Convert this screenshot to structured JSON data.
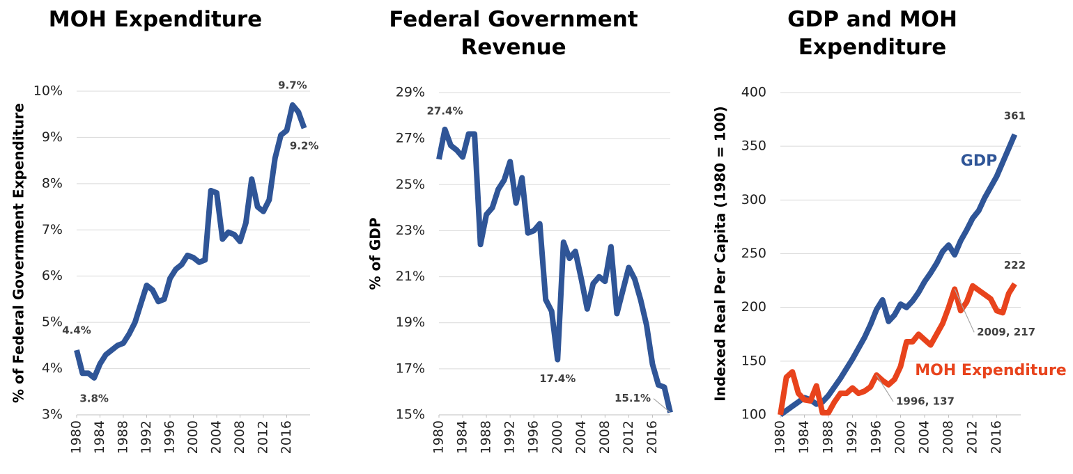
{
  "chart_data": [
    {
      "type": "line",
      "title": "MOH Expenditure",
      "y_label": "% of Federal Government Expenditure",
      "x": [
        1980,
        1981,
        1982,
        1983,
        1984,
        1985,
        1986,
        1987,
        1988,
        1989,
        1990,
        1991,
        1992,
        1993,
        1994,
        1995,
        1996,
        1997,
        1998,
        1999,
        2000,
        2001,
        2002,
        2003,
        2004,
        2005,
        2006,
        2007,
        2008,
        2009,
        2010,
        2011,
        2012,
        2013,
        2014,
        2015,
        2016,
        2017,
        2018,
        2019
      ],
      "xlim": [
        1980,
        2020
      ],
      "xticks": [
        1980,
        1984,
        1988,
        1992,
        1996,
        2000,
        2004,
        2008,
        2012,
        2016
      ],
      "ylim": [
        3,
        10
      ],
      "yticks": [
        {
          "value": 3,
          "label": "3%"
        },
        {
          "value": 4,
          "label": "4%"
        },
        {
          "value": 5,
          "label": "5%"
        },
        {
          "value": 6,
          "label": "6%"
        },
        {
          "value": 7,
          "label": "7%"
        },
        {
          "value": 8,
          "label": "8%"
        },
        {
          "value": 9,
          "label": "9%"
        },
        {
          "value": 10,
          "label": "10%"
        }
      ],
      "grid": true,
      "series": [
        {
          "color": "#2f5597",
          "values": [
            4.4,
            3.9,
            3.9,
            3.8,
            4.1,
            4.3,
            4.4,
            4.5,
            4.55,
            4.75,
            5.0,
            5.4,
            5.8,
            5.7,
            5.45,
            5.5,
            5.95,
            6.15,
            6.25,
            6.45,
            6.4,
            6.3,
            6.35,
            7.85,
            7.8,
            6.8,
            6.95,
            6.9,
            6.75,
            7.15,
            8.1,
            7.5,
            7.4,
            7.65,
            8.55,
            9.05,
            9.15,
            9.7,
            9.55,
            9.2
          ],
          "value_labels": [
            "4.4%",
            null,
            null,
            "3.8%",
            null,
            null,
            null,
            null,
            null,
            null,
            null,
            null,
            null,
            null,
            null,
            null,
            null,
            null,
            null,
            null,
            null,
            null,
            null,
            null,
            null,
            null,
            null,
            null,
            null,
            null,
            null,
            null,
            null,
            null,
            null,
            null,
            null,
            "9.7%",
            null,
            "9.2%"
          ]
        }
      ]
    },
    {
      "type": "line",
      "title": "Federal Government Revenue",
      "y_label": "% of GDP",
      "x": [
        1980,
        1981,
        1982,
        1983,
        1984,
        1985,
        1986,
        1987,
        1988,
        1989,
        1990,
        1991,
        1992,
        1993,
        1994,
        1995,
        1996,
        1997,
        1998,
        1999,
        2000,
        2001,
        2002,
        2003,
        2004,
        2005,
        2006,
        2007,
        2008,
        2009,
        2010,
        2011,
        2012,
        2013,
        2014,
        2015,
        2016,
        2017,
        2018,
        2019
      ],
      "xlim": [
        1980,
        2019
      ],
      "xticks": [
        1980,
        1984,
        1988,
        1992,
        1996,
        2000,
        2004,
        2008,
        2012,
        2016
      ],
      "ylim": [
        15,
        29
      ],
      "yticks": [
        {
          "value": 15,
          "label": "15%"
        },
        {
          "value": 17,
          "label": "17%"
        },
        {
          "value": 19,
          "label": "19%"
        },
        {
          "value": 21,
          "label": "21%"
        },
        {
          "value": 23,
          "label": "23%"
        },
        {
          "value": 25,
          "label": "25%"
        },
        {
          "value": 27,
          "label": "27%"
        },
        {
          "value": 29,
          "label": "29%"
        }
      ],
      "grid": true,
      "series": [
        {
          "color": "#2f5597",
          "values": [
            26.1,
            27.4,
            26.7,
            26.5,
            26.2,
            27.2,
            27.2,
            22.4,
            23.7,
            24.0,
            24.8,
            25.2,
            26.0,
            24.2,
            25.3,
            22.9,
            23.0,
            23.3,
            20.0,
            19.5,
            17.4,
            22.5,
            21.8,
            22.1,
            20.9,
            19.6,
            20.7,
            21.0,
            20.8,
            22.3,
            19.4,
            20.4,
            21.4,
            20.9,
            20.0,
            18.9,
            17.2,
            16.3,
            16.2,
            15.1
          ],
          "value_labels": [
            null,
            "27.4%",
            null,
            null,
            null,
            null,
            null,
            null,
            null,
            null,
            null,
            null,
            null,
            null,
            null,
            null,
            null,
            null,
            null,
            null,
            "17.4%",
            null,
            null,
            null,
            null,
            null,
            null,
            null,
            null,
            null,
            null,
            null,
            null,
            null,
            null,
            null,
            null,
            null,
            null,
            "15.1%"
          ]
        }
      ]
    },
    {
      "type": "line",
      "title": "GDP and MOH Expenditure",
      "y_label": "Indexed Real Per Capita (1980 = 100)",
      "x": [
        1980,
        1981,
        1982,
        1983,
        1984,
        1985,
        1986,
        1987,
        1988,
        1989,
        1990,
        1991,
        1992,
        1993,
        1994,
        1995,
        1996,
        1997,
        1998,
        1999,
        2000,
        2001,
        2002,
        2003,
        2004,
        2005,
        2006,
        2007,
        2008,
        2009,
        2010,
        2011,
        2012,
        2013,
        2014,
        2015,
        2016,
        2017,
        2018,
        2019
      ],
      "xlim": [
        1980,
        2020
      ],
      "xticks": [
        1980,
        1984,
        1988,
        1992,
        1996,
        2000,
        2004,
        2008,
        2012,
        2016
      ],
      "ylim": [
        100,
        400
      ],
      "yticks": [
        100,
        150,
        200,
        250,
        300,
        350,
        400
      ],
      "grid": true,
      "series": [
        {
          "name": "GDP",
          "color": "#2f5597",
          "values": [
            100,
            104,
            108,
            112,
            116,
            114,
            110,
            112,
            118,
            126,
            134,
            143,
            152,
            162,
            172,
            184,
            198,
            207,
            187,
            193,
            203,
            200,
            206,
            214,
            224,
            232,
            241,
            252,
            258,
            249,
            262,
            272,
            283,
            290,
            302,
            312,
            322,
            335,
            348,
            361
          ],
          "value_labels": [
            null,
            null,
            null,
            null,
            null,
            null,
            null,
            null,
            null,
            null,
            null,
            null,
            null,
            null,
            null,
            null,
            null,
            null,
            null,
            null,
            null,
            null,
            null,
            null,
            null,
            null,
            null,
            null,
            null,
            null,
            null,
            null,
            null,
            null,
            null,
            null,
            null,
            null,
            null,
            "361"
          ]
        },
        {
          "name": "MOH Expenditure",
          "color": "#e8431c",
          "values": [
            100,
            135,
            140,
            120,
            114,
            113,
            127,
            102,
            102,
            112,
            120,
            120,
            125,
            120,
            122,
            126,
            137,
            132,
            128,
            133,
            145,
            168,
            168,
            175,
            170,
            165,
            175,
            185,
            200,
            217,
            197,
            205,
            220,
            216,
            212,
            208,
            197,
            195,
            213,
            222
          ],
          "value_labels": [
            null,
            null,
            null,
            null,
            null,
            null,
            null,
            null,
            null,
            null,
            null,
            null,
            null,
            null,
            null,
            null,
            "1996, 137",
            null,
            null,
            null,
            null,
            null,
            null,
            null,
            null,
            null,
            null,
            null,
            null,
            "2009, 217",
            null,
            null,
            null,
            null,
            null,
            null,
            null,
            null,
            null,
            "222"
          ]
        }
      ]
    }
  ]
}
